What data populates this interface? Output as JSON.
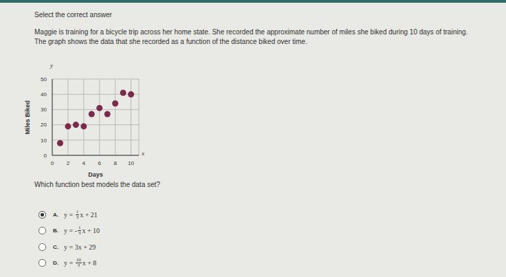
{
  "instruction": "Select the correct answer",
  "question": "Maggie is training for a bicycle trip across her home state. She recorded the approximate number of miles she biked during 10 days of training. The graph shows the data that she recorded as a function of the distance biked over time.",
  "chart_data": {
    "type": "scatter",
    "x_label": "Days",
    "y_label": "Miles Biked",
    "axis_names": {
      "x": "x",
      "y": "y"
    },
    "x": [
      1,
      2,
      3,
      4,
      5,
      6,
      7,
      8,
      9,
      10
    ],
    "values": [
      8,
      19,
      20,
      19,
      27,
      31,
      27,
      34,
      41,
      40
    ],
    "color": "#7a2a4a",
    "marker": "circle",
    "xlim": [
      0,
      11
    ],
    "xticks": [
      0,
      2,
      4,
      6,
      8,
      10
    ],
    "ylim": [
      0,
      50
    ],
    "yticks": [
      0,
      10,
      20,
      30,
      40,
      50
    ],
    "grid": true
  },
  "prompt": "Which function best models the data set?",
  "options": [
    {
      "letter": "A.",
      "prefix": "y = ",
      "numerator": "1",
      "denominator": "3",
      "suffix": "x + 21",
      "selected": true
    },
    {
      "letter": "B.",
      "prefix": "y = -",
      "numerator": "1",
      "denominator": "3",
      "suffix": "x + 10",
      "selected": false
    },
    {
      "letter": "C.",
      "prefix": "y = 3x + 29",
      "selected": false
    },
    {
      "letter": "D.",
      "prefix": "y = ",
      "numerator": "10",
      "denominator": "3",
      "suffix": "x + 8",
      "selected": false
    }
  ]
}
